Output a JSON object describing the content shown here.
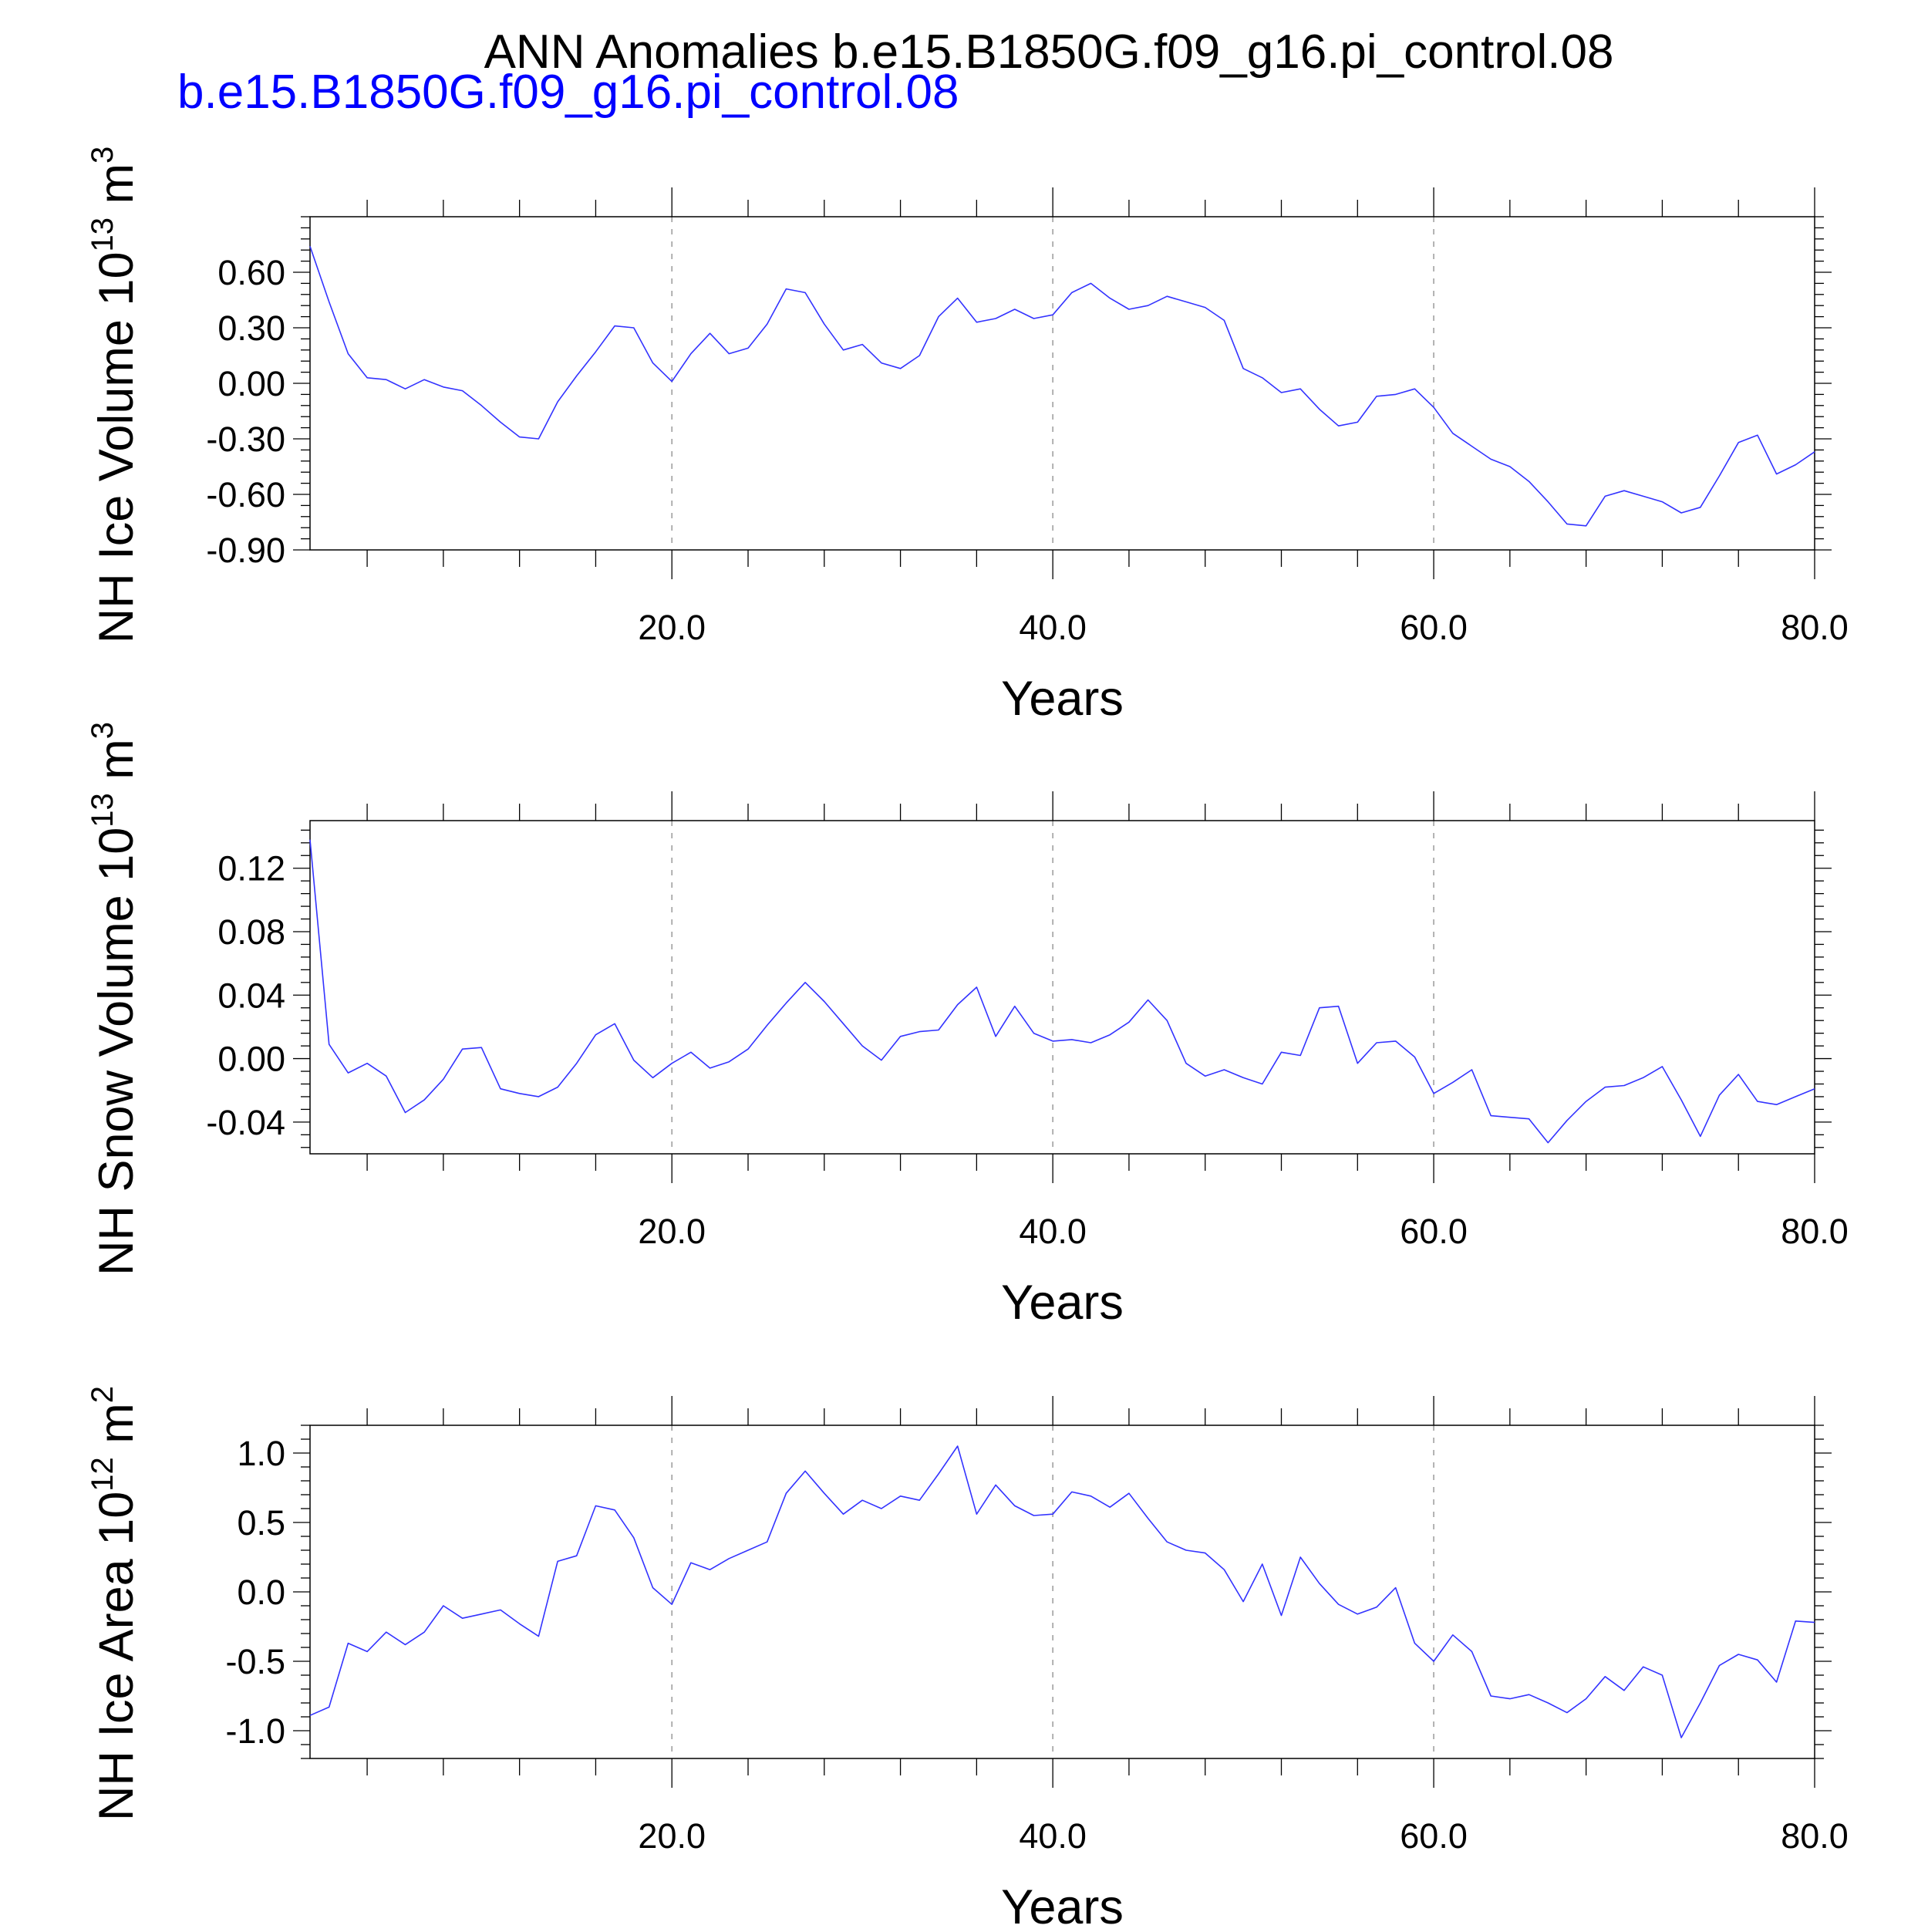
{
  "header": {
    "title": "ANN Anomalies b.e15.B1850G.f09_g16.pi_control.08",
    "subtitle": "b.e15.B1850G.f09_g16.pi_control.08"
  },
  "colors": {
    "series": "#3333ff",
    "subtitle": "#0000ff",
    "grid": "#9a9a9a"
  },
  "chart_data": [
    {
      "type": "line",
      "ylabel": "NH Ice Volume 10",
      "ylabel_exp": "13",
      "ylabel_unit": " m",
      "ylabel_unit_exp": "3",
      "xlabel": "Years",
      "xlim": [
        1,
        80
      ],
      "ylim": [
        -0.9,
        0.9
      ],
      "yticks": [
        -0.9,
        -0.6,
        -0.3,
        0.0,
        0.3,
        0.6
      ],
      "ytick_labels": [
        "-0.90",
        "-0.60",
        "-0.30",
        "0.00",
        "0.30",
        "0.60"
      ],
      "xticks": [
        20,
        40,
        60,
        80
      ],
      "xtick_labels": [
        "20.0",
        "40.0",
        "60.0",
        "80.0"
      ],
      "grid_x": [
        20,
        40,
        60
      ],
      "x_start": 1,
      "values": [
        0.74,
        0.44,
        0.16,
        0.03,
        0.02,
        -0.03,
        0.02,
        -0.02,
        -0.04,
        -0.12,
        -0.21,
        -0.29,
        -0.3,
        -0.1,
        0.04,
        0.17,
        0.31,
        0.3,
        0.11,
        0.01,
        0.16,
        0.27,
        0.16,
        0.19,
        0.32,
        0.51,
        0.49,
        0.32,
        0.18,
        0.21,
        0.11,
        0.08,
        0.15,
        0.36,
        0.46,
        0.33,
        0.35,
        0.4,
        0.35,
        0.37,
        0.49,
        0.54,
        0.46,
        0.4,
        0.42,
        0.47,
        0.44,
        0.41,
        0.34,
        0.08,
        0.03,
        -0.05,
        -0.03,
        -0.14,
        -0.23,
        -0.21,
        -0.07,
        -0.06,
        -0.03,
        -0.13,
        -0.27,
        -0.34,
        -0.41,
        -0.45,
        -0.53,
        -0.64,
        -0.76,
        -0.77,
        -0.61,
        -0.58,
        -0.61,
        -0.64,
        -0.7,
        -0.67,
        -0.5,
        -0.32,
        -0.28,
        -0.49,
        -0.44,
        -0.37
      ]
    },
    {
      "type": "line",
      "ylabel": "NH Snow Volume 10",
      "ylabel_exp": "13",
      "ylabel_unit": " m",
      "ylabel_unit_exp": "3",
      "xlabel": "Years",
      "xlim": [
        1,
        80
      ],
      "ylim": [
        -0.06,
        0.15
      ],
      "yticks": [
        -0.04,
        0.0,
        0.04,
        0.08,
        0.12
      ],
      "ytick_labels": [
        "-0.04",
        "0.00",
        "0.04",
        "0.08",
        "0.12"
      ],
      "xticks": [
        20,
        40,
        60,
        80
      ],
      "xtick_labels": [
        "20.0",
        "40.0",
        "60.0",
        "80.0"
      ],
      "grid_x": [
        20,
        40,
        60
      ],
      "x_start": 1,
      "values": [
        0.138,
        0.009,
        -0.009,
        -0.003,
        -0.011,
        -0.034,
        -0.026,
        -0.013,
        0.006,
        0.007,
        -0.019,
        -0.022,
        -0.024,
        -0.018,
        -0.003,
        0.015,
        0.022,
        -0.001,
        -0.012,
        -0.003,
        0.004,
        -0.006,
        -0.002,
        0.006,
        0.021,
        0.035,
        0.048,
        0.036,
        0.022,
        0.008,
        -0.001,
        0.014,
        0.017,
        0.018,
        0.034,
        0.045,
        0.014,
        0.033,
        0.016,
        0.011,
        0.012,
        0.01,
        0.015,
        0.023,
        0.037,
        0.024,
        -0.003,
        -0.011,
        -0.007,
        -0.012,
        -0.016,
        0.004,
        0.002,
        0.032,
        0.033,
        -0.003,
        0.01,
        0.011,
        0.001,
        -0.022,
        -0.015,
        -0.007,
        -0.036,
        -0.037,
        -0.038,
        -0.053,
        -0.039,
        -0.027,
        -0.018,
        -0.017,
        -0.012,
        -0.005,
        -0.026,
        -0.049,
        -0.023,
        -0.01,
        -0.027,
        -0.029,
        -0.024,
        -0.019
      ]
    },
    {
      "type": "line",
      "ylabel": "NH Ice Area 10",
      "ylabel_exp": "12",
      "ylabel_unit": " m",
      "ylabel_unit_exp": "2",
      "xlabel": "Years",
      "xlim": [
        1,
        80
      ],
      "ylim": [
        -1.2,
        1.2
      ],
      "yticks": [
        -1.0,
        -0.5,
        0.0,
        0.5,
        1.0
      ],
      "ytick_labels": [
        "-1.0",
        "-0.5",
        "0.0",
        "0.5",
        "1.0"
      ],
      "xticks": [
        20,
        40,
        60,
        80
      ],
      "xtick_labels": [
        "20.0",
        "40.0",
        "60.0",
        "80.0"
      ],
      "grid_x": [
        20,
        40,
        60
      ],
      "x_start": 1,
      "values": [
        -0.89,
        -0.83,
        -0.37,
        -0.43,
        -0.29,
        -0.38,
        -0.29,
        -0.1,
        -0.19,
        -0.16,
        -0.13,
        -0.23,
        -0.32,
        0.22,
        0.26,
        0.62,
        0.59,
        0.39,
        0.03,
        -0.09,
        0.21,
        0.16,
        0.24,
        0.3,
        0.36,
        0.71,
        0.87,
        0.71,
        0.56,
        0.66,
        0.6,
        0.69,
        0.66,
        0.85,
        1.05,
        0.56,
        0.77,
        0.62,
        0.55,
        0.56,
        0.72,
        0.69,
        0.61,
        0.71,
        0.53,
        0.36,
        0.3,
        0.28,
        0.16,
        -0.07,
        0.2,
        -0.17,
        0.25,
        0.06,
        -0.09,
        -0.16,
        -0.11,
        0.03,
        -0.37,
        -0.5,
        -0.31,
        -0.43,
        -0.75,
        -0.77,
        -0.74,
        -0.8,
        -0.87,
        -0.77,
        -0.61,
        -0.71,
        -0.54,
        -0.6,
        -1.05,
        -0.8,
        -0.53,
        -0.45,
        -0.49,
        -0.65,
        -0.21,
        -0.22
      ]
    }
  ]
}
